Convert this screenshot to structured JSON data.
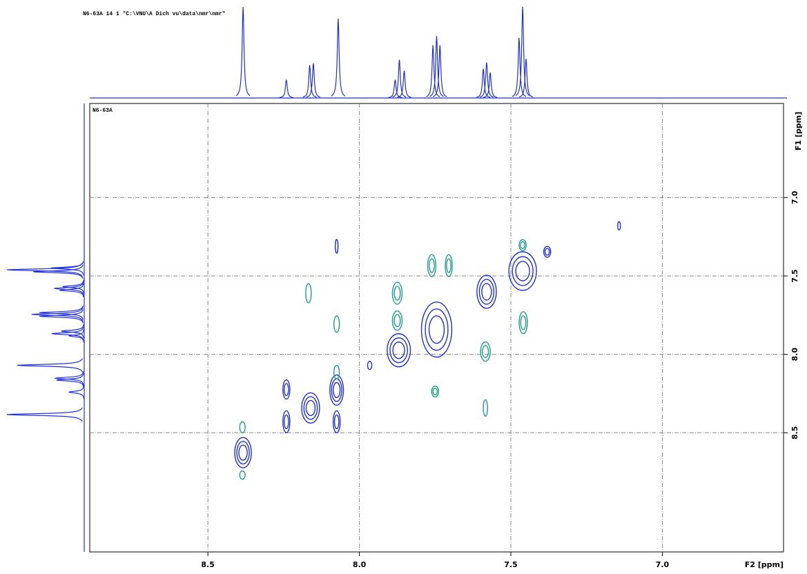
{
  "chart_data": {
    "type": "contour2d",
    "title": "N6-63A  14  1  \"C:\\VNU\\A Dich vu\\data\\nmr\\nmr\"",
    "label": "N6-63A",
    "xlabel": "F2 [ppm]",
    "ylabel": "F1 [ppm]",
    "xlim": [
      8.89,
      6.6
    ],
    "ylim": [
      6.4,
      9.26
    ],
    "xticks": [
      8.5,
      {
        "value": 8,
        "label": "8.0"
      },
      7.5,
      {
        "value": 7,
        "label": "7.0"
      }
    ],
    "yticks": [
      {
        "value": 7,
        "label": "7.0"
      },
      7.5,
      {
        "value": 8,
        "label": "8.0"
      },
      8.5
    ],
    "grid": true,
    "projection": {
      "color": "#1f2fe0",
      "positions": [
        8.384,
        8.241,
        8.164,
        8.152,
        8.07,
        7.882,
        7.868,
        7.852,
        7.757,
        7.745,
        7.734,
        7.591,
        7.58,
        7.568,
        7.473,
        7.461,
        7.45
      ],
      "intensities": [
        100,
        20,
        36,
        38,
        87,
        20,
        42,
        30,
        58,
        68,
        58,
        32,
        39,
        28,
        66,
        100,
        43
      ]
    },
    "series": [
      {
        "color": "#1f2fe0",
        "x": [
          8.384,
          8.241,
          8.241,
          8.161,
          8.075,
          8.075,
          8.075,
          7.87,
          7.745,
          7.58,
          7.461,
          7.143,
          7.966,
          7.38
        ],
        "y": [
          8.627,
          8.224,
          8.43,
          8.342,
          8.228,
          8.43,
          7.311,
          7.974,
          7.842,
          7.601,
          7.469,
          7.18,
          8.07,
          7.346
        ],
        "widths": [
          0.055,
          0.023,
          0.023,
          0.059,
          0.045,
          0.023,
          0.009,
          0.077,
          0.1,
          0.064,
          0.091,
          0.009,
          0.014,
          0.023
        ],
        "heights": [
          0.193,
          0.123,
          0.14,
          0.193,
          0.193,
          0.14,
          0.088,
          0.211,
          0.351,
          0.211,
          0.246,
          0.053,
          0.053,
          0.07
        ]
      },
      {
        "color": "#1a9e8f",
        "x": [
          8.386,
          8.386,
          8.168,
          8.075,
          8.075,
          7.875,
          7.875,
          7.761,
          7.705,
          7.75,
          7.584,
          7.584,
          7.459,
          7.461
        ],
        "y": [
          8.465,
          8.77,
          7.61,
          7.807,
          8.114,
          7.61,
          7.785,
          7.434,
          7.434,
          8.237,
          7.982,
          8.342,
          7.798,
          7.303
        ],
        "widths": [
          0.018,
          0.018,
          0.018,
          0.018,
          0.018,
          0.032,
          0.032,
          0.027,
          0.023,
          0.023,
          0.032,
          0.014,
          0.027,
          0.023
        ],
        "heights": [
          0.07,
          0.053,
          0.123,
          0.105,
          0.088,
          0.14,
          0.123,
          0.14,
          0.14,
          0.07,
          0.123,
          0.105,
          0.14,
          0.07
        ]
      }
    ]
  }
}
